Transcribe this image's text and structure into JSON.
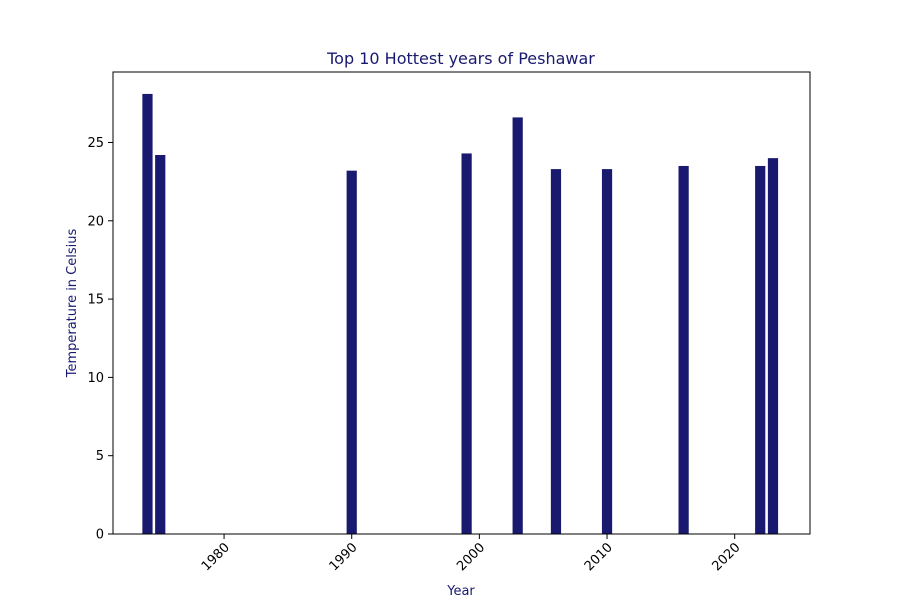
{
  "chart_data": {
    "type": "bar",
    "title": "Top 10 Hottest years of Peshawar",
    "xlabel": "Year",
    "ylabel": "Temperature in Celsius",
    "x": [
      1974,
      1975,
      1990,
      1999,
      2003,
      2006,
      2010,
      2016,
      2022,
      2023
    ],
    "values": [
      28.1,
      24.2,
      23.2,
      24.3,
      26.6,
      23.3,
      23.3,
      23.5,
      23.5,
      24.0
    ],
    "xlim": [
      1971.3,
      2025.9
    ],
    "ylim": [
      0,
      29.5
    ],
    "xticks": [
      1980,
      1990,
      2000,
      2010,
      2020
    ],
    "yticks": [
      0,
      5,
      10,
      15,
      20,
      25
    ],
    "bar_width_years": 0.8,
    "grid": false,
    "colors": {
      "bar": "#191970",
      "text_accent": "#191970",
      "axis": "#000000"
    }
  }
}
